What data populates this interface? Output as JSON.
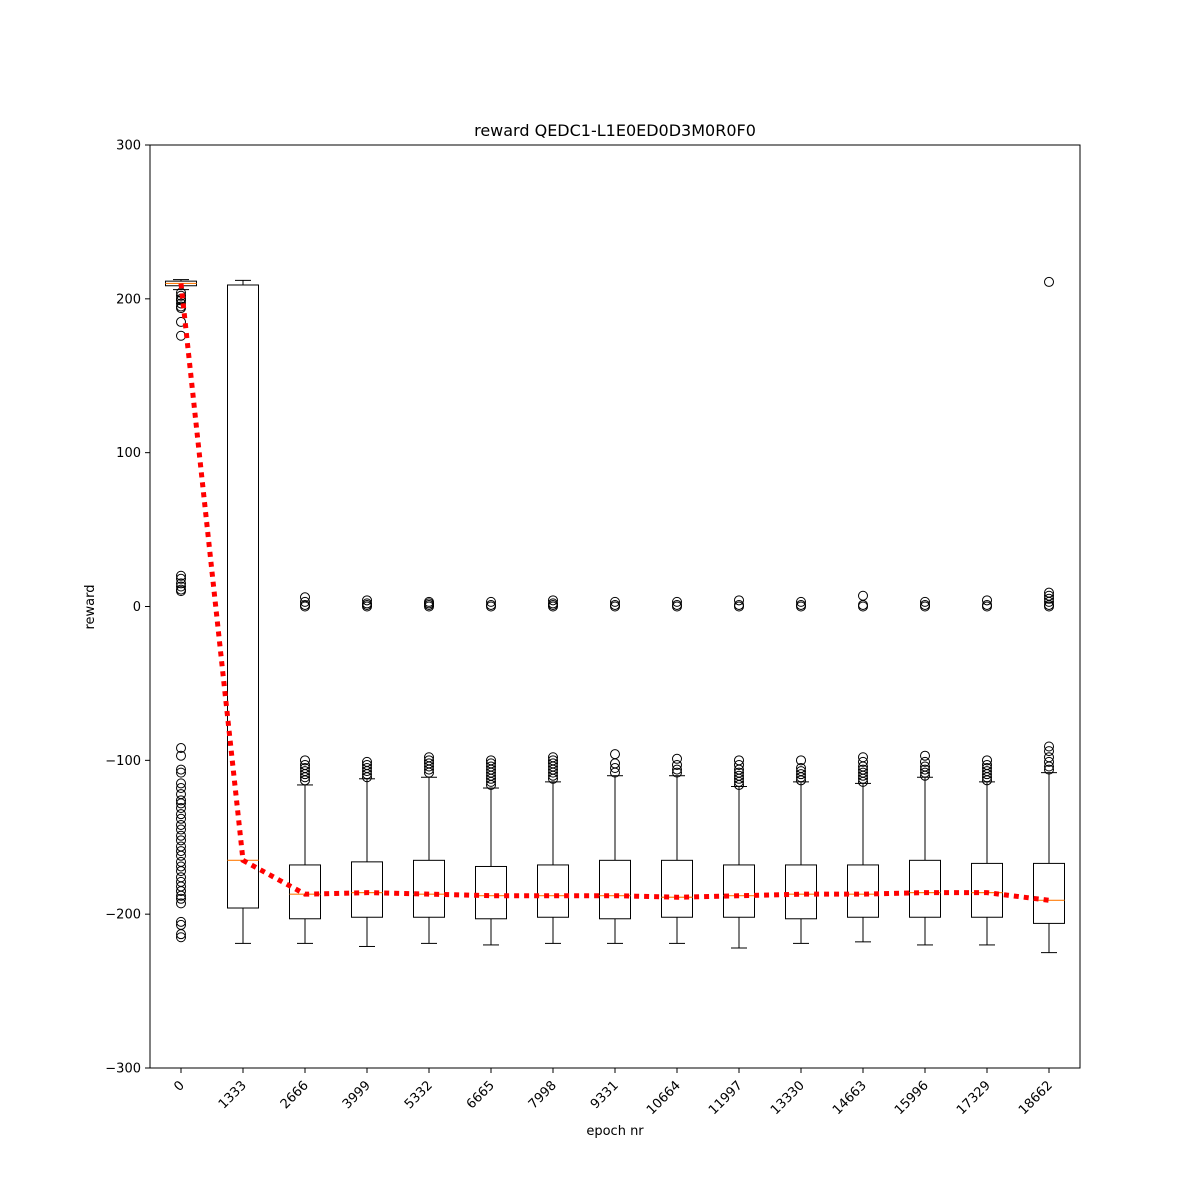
{
  "chart_data": {
    "type": "box",
    "title": "reward QEDC1-L1E0ED0D3M0R0F0",
    "xlabel": "epoch nr",
    "ylabel": "reward",
    "ylim": [
      -300,
      300
    ],
    "yticks": [
      -300,
      -200,
      -100,
      0,
      100,
      200,
      300
    ],
    "categories": [
      "0",
      "1333",
      "2666",
      "3999",
      "5332",
      "6665",
      "7998",
      "9331",
      "10664",
      "11997",
      "13330",
      "14663",
      "15996",
      "17329",
      "18662"
    ],
    "boxes": [
      {
        "q1": 208.5,
        "median": 210,
        "q3": 211.5,
        "whisker_low": 206,
        "whisker_high": 212.5
      },
      {
        "q1": -196,
        "median": -165,
        "q3": 209,
        "whisker_low": -219,
        "whisker_high": 212
      },
      {
        "q1": -203,
        "median": -187,
        "q3": -168,
        "whisker_low": -219,
        "whisker_high": -116
      },
      {
        "q1": -202,
        "median": -186,
        "q3": -166,
        "whisker_low": -221,
        "whisker_high": -112
      },
      {
        "q1": -202,
        "median": -187,
        "q3": -165,
        "whisker_low": -219,
        "whisker_high": -111
      },
      {
        "q1": -203,
        "median": -188,
        "q3": -169,
        "whisker_low": -220,
        "whisker_high": -118
      },
      {
        "q1": -202,
        "median": -188,
        "q3": -168,
        "whisker_low": -219,
        "whisker_high": -114
      },
      {
        "q1": -203,
        "median": -188,
        "q3": -165,
        "whisker_low": -219,
        "whisker_high": -110
      },
      {
        "q1": -202,
        "median": -189,
        "q3": -165,
        "whisker_low": -219,
        "whisker_high": -110
      },
      {
        "q1": -202,
        "median": -188,
        "q3": -168,
        "whisker_low": -222,
        "whisker_high": -117
      },
      {
        "q1": -203,
        "median": -187,
        "q3": -168,
        "whisker_low": -219,
        "whisker_high": -114
      },
      {
        "q1": -202,
        "median": -187,
        "q3": -168,
        "whisker_low": -218,
        "whisker_high": -115
      },
      {
        "q1": -202,
        "median": -186,
        "q3": -165,
        "whisker_low": -220,
        "whisker_high": -111
      },
      {
        "q1": -202,
        "median": -186,
        "q3": -167,
        "whisker_low": -220,
        "whisker_high": -114
      },
      {
        "q1": -206,
        "median": -191,
        "q3": -167,
        "whisker_low": -225,
        "whisker_high": -108
      }
    ],
    "outliers": [
      [
        204,
        202,
        200,
        199,
        197,
        195,
        194,
        185,
        176,
        20,
        18,
        15,
        13,
        11,
        10,
        -92,
        -97,
        -106,
        -108,
        -115,
        -118,
        -122,
        -126,
        -128,
        -131,
        -135,
        -138,
        -142,
        -145,
        -149,
        -152,
        -156,
        -159,
        -162,
        -166,
        -169,
        -172,
        -176,
        -179,
        -182,
        -185,
        -188,
        -190,
        -193,
        -205,
        -207,
        -213,
        -215
      ],
      [],
      [
        6,
        3,
        1,
        0,
        -100,
        -103,
        -105,
        -107,
        -109,
        -111,
        -113
      ],
      [
        4,
        2,
        1,
        0,
        -101,
        -103,
        -105,
        -107,
        -109,
        -111
      ],
      [
        3,
        2,
        1,
        0,
        -98,
        -100,
        -102,
        -104,
        -106,
        -108
      ],
      [
        3,
        1,
        0,
        -100,
        -102,
        -104,
        -106,
        -108,
        -110,
        -112,
        -114,
        -116
      ],
      [
        4,
        2,
        1,
        0,
        -98,
        -100,
        -102,
        -104,
        -106,
        -108,
        -110,
        -112
      ],
      [
        3,
        1,
        0,
        -96,
        -102,
        -105,
        -108
      ],
      [
        3,
        1,
        0,
        -99,
        -103,
        -106,
        -108
      ],
      [
        4,
        1,
        0,
        -100,
        -103,
        -106,
        -108,
        -110,
        -112,
        -114,
        -116
      ],
      [
        3,
        1,
        0,
        -100,
        -105,
        -107,
        -109,
        -111,
        -113
      ],
      [
        7,
        1,
        0,
        -98,
        -101,
        -104,
        -106,
        -108,
        -110,
        -112,
        -114
      ],
      [
        3,
        1,
        0,
        -97,
        -101,
        -104,
        -106,
        -108,
        -110
      ],
      [
        4,
        1,
        0,
        -100,
        -103,
        -105,
        -107,
        -109,
        -111,
        -113
      ],
      [
        211,
        9,
        7,
        5,
        3,
        1,
        0,
        -91,
        -94,
        -98,
        -101,
        -104,
        -106
      ]
    ],
    "trend_line": {
      "style": "dotted",
      "color": "#ff0000",
      "values": [
        210,
        -165,
        -187,
        -186,
        -187,
        -188,
        -188,
        -188,
        -189,
        -188,
        -187,
        -187,
        -186,
        -186,
        -191
      ]
    },
    "median_color": "#ff7f0e",
    "grid": false
  }
}
